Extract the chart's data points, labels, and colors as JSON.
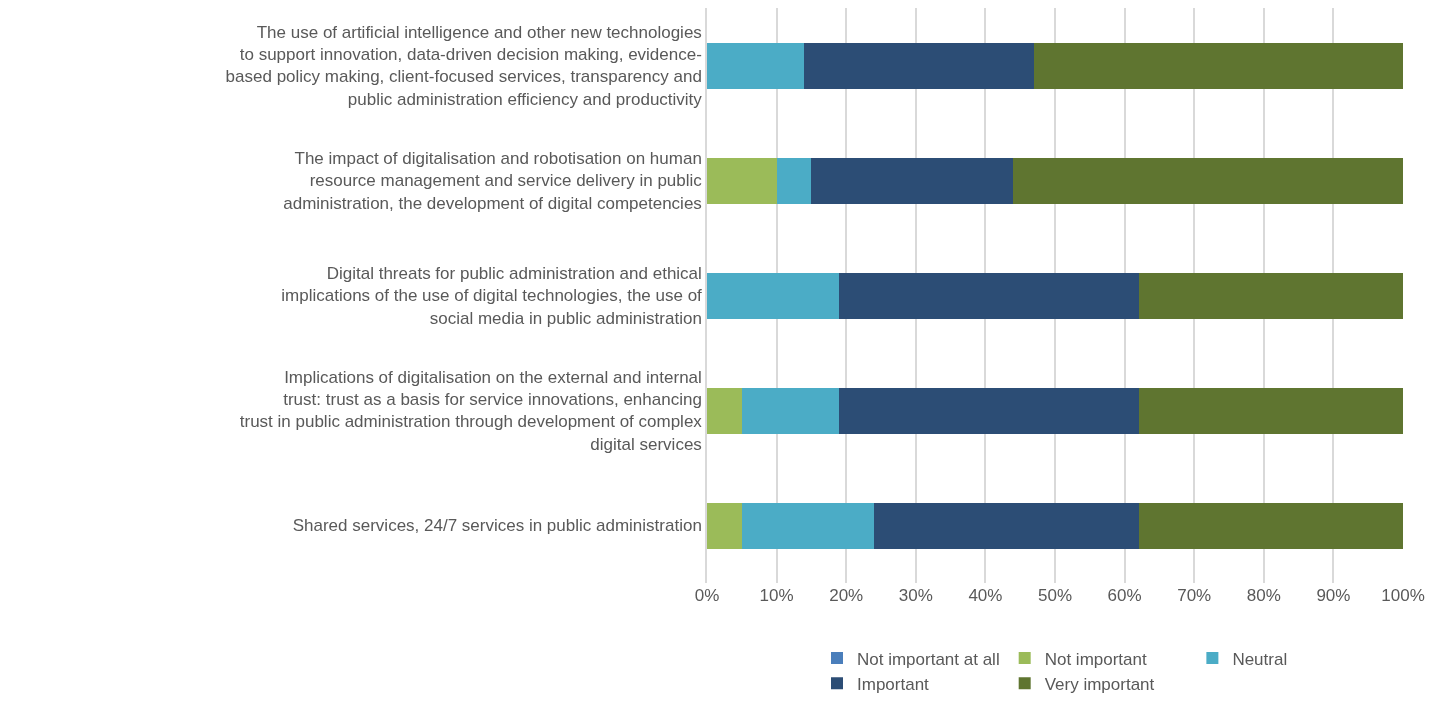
{
  "chart_data": {
    "type": "bar",
    "orientation": "horizontal",
    "stacked": true,
    "categories": [
      "The use of artificial intelligence and other new technologies to support innovation, data-driven decision making, evidence-based policy making, client-focused services, transparency and public administration efficiency and productivity",
      "The impact of digitalisation and robotisation on human resource management and service delivery in public administration, the development of digital competencies",
      "Digital threats for public administration and ethical implications of the use of digital technologies, the use of social media in public administration",
      "Implications of digitalisation on the external and internal trust: trust as a basis for service innovations, enhancing trust in public administration through development of complex digital services",
      "Shared services, 24/7 services in public administration"
    ],
    "series": [
      {
        "name": "Not important at all",
        "color": "#4a7ebb",
        "values": [
          0,
          0,
          0,
          0,
          0
        ]
      },
      {
        "name": "Not important",
        "color": "#9bbb59",
        "values": [
          0,
          10,
          0,
          5,
          5
        ]
      },
      {
        "name": "Neutral",
        "color": "#4bacc6",
        "values": [
          14,
          5,
          19,
          14,
          19
        ]
      },
      {
        "name": "Important",
        "color": "#2c4d75",
        "values": [
          33,
          29,
          43,
          43,
          38
        ]
      },
      {
        "name": "Very important",
        "color": "#5f7530",
        "values": [
          53,
          56,
          38,
          38,
          38
        ]
      }
    ],
    "xlim": [
      0,
      100
    ],
    "xticks": [
      {
        "value": 0,
        "label": "0%"
      },
      {
        "value": 10,
        "label": "10%"
      },
      {
        "value": 20,
        "label": "20%"
      },
      {
        "value": 30,
        "label": "30%"
      },
      {
        "value": 40,
        "label": "40%"
      },
      {
        "value": 50,
        "label": "50%"
      },
      {
        "value": 60,
        "label": "60%"
      },
      {
        "value": 70,
        "label": "70%"
      },
      {
        "value": 80,
        "label": "80%"
      },
      {
        "value": 90,
        "label": "90%"
      },
      {
        "value": 100,
        "label": "100%"
      }
    ],
    "grid": "x",
    "legend": "bottom"
  }
}
